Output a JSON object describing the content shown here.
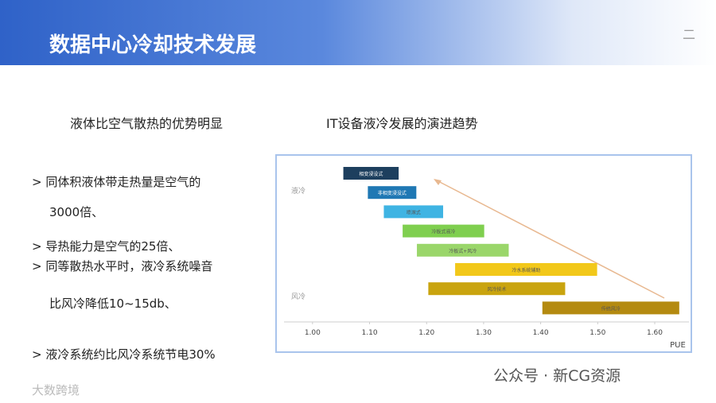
{
  "header": {
    "title": "数据中心冷却技术发展",
    "page": "二"
  },
  "left": {
    "heading": "液体比空气散热的优势明显",
    "lines": [
      "> 同体积液体带走热量是空气的",
      "3000倍、",
      "> 导热能力是空气的25倍、",
      "> 同等散热水平时，液冷系统噪音",
      "比风冷降低10~15db、",
      "> 液冷系统约比风冷系统节电30%"
    ]
  },
  "right": {
    "heading": "IT设备液冷发展的演进趋势"
  },
  "chart_data": {
    "type": "range_bar",
    "x_label": "PUE",
    "row_labels": [
      "液冷",
      "风冷"
    ],
    "xlim": [
      0.95,
      1.66
    ],
    "xticks": [
      {
        "value": 1.0,
        "label": "1.00"
      },
      {
        "value": 1.1,
        "label": "1.10"
      },
      {
        "value": 1.2,
        "label": "1.20"
      },
      {
        "value": 1.3,
        "label": "1.30"
      },
      {
        "value": 1.4,
        "label": "1.40"
      },
      {
        "value": 1.5,
        "label": "1.50"
      },
      {
        "value": 1.6,
        "label": "1.60"
      }
    ],
    "bars": [
      {
        "label": "相变浸没式",
        "start": 1.054,
        "end": 1.151,
        "color": "#1d3f5e"
      },
      {
        "label": "非相变浸没式",
        "start": 1.097,
        "end": 1.182,
        "color": "#1f78b4"
      },
      {
        "label": "喷淋式",
        "start": 1.125,
        "end": 1.229,
        "color": "#3fb4e3"
      },
      {
        "label": "冷板式液冷",
        "start": 1.158,
        "end": 1.301,
        "color": "#7fcf4f"
      },
      {
        "label": "冷板式+风冷",
        "start": 1.183,
        "end": 1.344,
        "color": "#9ad66a"
      },
      {
        "label": "冷水系统辅助",
        "start": 1.25,
        "end": 1.499,
        "color": "#f2c81a"
      },
      {
        "label": "风冷技术",
        "start": 1.203,
        "end": 1.443,
        "color": "#c9a40f"
      },
      {
        "label": "传统风冷",
        "start": 1.403,
        "end": 1.643,
        "color": "#b48a10"
      }
    ]
  },
  "footer": {
    "watermark": "公众号 · 新CG资源",
    "logo": "大数跨境"
  }
}
